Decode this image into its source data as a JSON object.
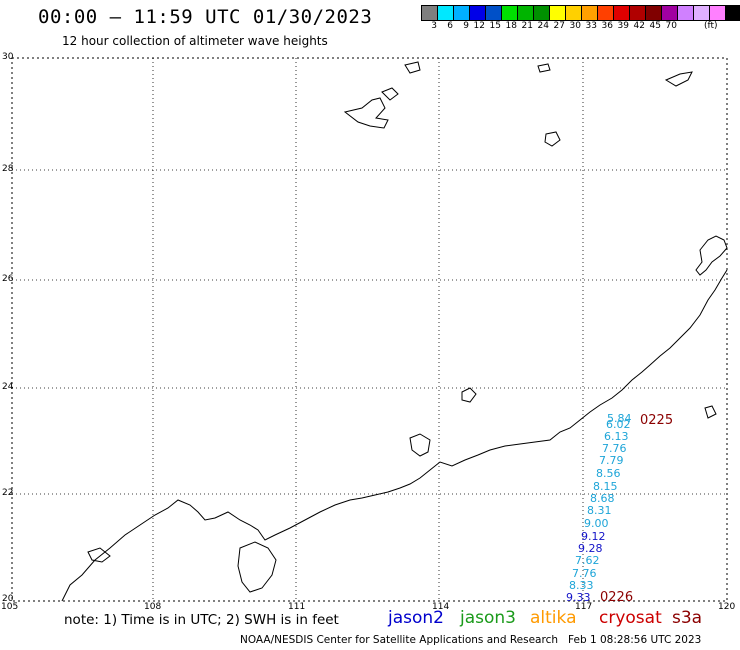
{
  "header": {
    "title": "00:00 – 11:59 UTC 01/30/2023",
    "subtitle": "12 hour collection of altimeter wave heights"
  },
  "colorbar": {
    "colors": [
      "#7f7f7f",
      "#00e8ff",
      "#00b0ff",
      "#0000e8",
      "#0050c8",
      "#00e000",
      "#00b400",
      "#009000",
      "#ffff00",
      "#ffd000",
      "#ffa000",
      "#ff4000",
      "#e00000",
      "#b00000",
      "#800000",
      "#a000a0",
      "#d080ff",
      "#e0b0ff",
      "#ff80ff",
      "#000000"
    ],
    "ticks": [
      "3",
      "6",
      "9",
      "12",
      "15",
      "18",
      "21",
      "24",
      "27",
      "30",
      "33",
      "36",
      "39",
      "42",
      "45",
      "70"
    ],
    "unit": "(ft)"
  },
  "map": {
    "lat_labels": [
      "30",
      "28",
      "26",
      "24",
      "22",
      "20"
    ],
    "lon_labels": [
      "105",
      "108",
      "111",
      "114",
      "117",
      "120"
    ]
  },
  "wave_heights": {
    "values": [
      "5.84",
      "6.02",
      "6.13",
      "7.76",
      "7.79",
      "8.56",
      "8.15",
      "8.68",
      "8.31",
      "9.00",
      "9.12",
      "9.28",
      "7.62",
      "7.76",
      "8.33",
      "9.33"
    ],
    "pass_labels": [
      "0225",
      "0226"
    ]
  },
  "legend": {
    "note": "note: 1) Time is in UTC; 2) SWH is in feet",
    "satellites": [
      {
        "name": "jason2",
        "color": "#0000cc"
      },
      {
        "name": "jason3",
        "color": "#1a9a1a"
      },
      {
        "name": "altika",
        "color": "#ff9a00"
      },
      {
        "name": "cryosat",
        "color": "#cc0000"
      },
      {
        "name": "s3a",
        "color": "#8b0000"
      }
    ]
  },
  "footer": {
    "credit": "NOAA/NESDIS Center for Satellite Applications and Research",
    "timestamp": "Feb  1 08:28:56 UTC 2023"
  }
}
